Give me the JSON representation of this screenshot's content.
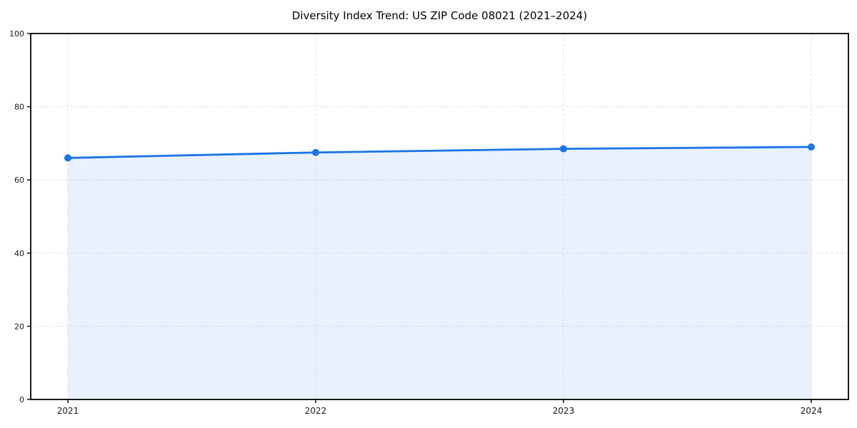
{
  "chart_data": {
    "type": "area",
    "title": "Diversity Index Trend: US ZIP Code 08021 (2021–2024)",
    "x": [
      2021,
      2022,
      2023,
      2024
    ],
    "xticks": [
      "2021",
      "2022",
      "2023",
      "2024"
    ],
    "series": [
      {
        "name": "Diversity Index",
        "values": [
          66,
          67.5,
          68.5,
          69
        ]
      }
    ],
    "xlabel": "",
    "ylabel": "",
    "ylim": [
      0,
      100
    ],
    "yticks": [
      0,
      20,
      40,
      60,
      80,
      100
    ],
    "x_margin_fraction": 0.05,
    "grid": true,
    "grid_style": "dashed",
    "legend": false,
    "marker": "circle",
    "marker_radius": 5,
    "line_width": 2.8,
    "line_color": "#1a73e8",
    "fill_color": "#e8f1fc",
    "fill_opacity": 0.1,
    "grid_color": "#e3e3e3",
    "axis_color": "#000000",
    "text_color": "#1a1a1a"
  }
}
